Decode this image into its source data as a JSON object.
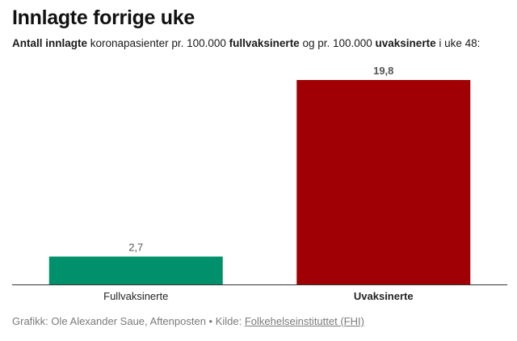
{
  "header": {
    "title": "Innlagte forrige uke",
    "subtitle_parts": [
      {
        "text": "Antall innlagte",
        "bold": true
      },
      {
        "text": " koronapasienter pr. 100.000 ",
        "bold": false
      },
      {
        "text": "fullvaksinerte",
        "bold": true
      },
      {
        "text": " og pr. 100.000 ",
        "bold": false
      },
      {
        "text": "uvaksinerte",
        "bold": true
      },
      {
        "text": " i uke 48:",
        "bold": false
      }
    ]
  },
  "chart_data": {
    "type": "bar",
    "title": "Innlagte forrige uke",
    "categories": [
      "Fullvaksinerte",
      "Uvaksinerte"
    ],
    "values": [
      2.7,
      19.8
    ],
    "value_labels": [
      "2,7",
      "19,8"
    ],
    "colors": [
      "#00906b",
      "#a00005"
    ],
    "category_bold": [
      false,
      true
    ],
    "xlabel": "",
    "ylabel": "",
    "ylim": [
      0,
      19.8
    ],
    "grid": false,
    "legend": "none"
  },
  "footer": {
    "credit": "Grafikk: Ole Alexander Saue, Aftenposten • Kilde: ",
    "source_link": "Folkehelseinstituttet (FHI)"
  }
}
